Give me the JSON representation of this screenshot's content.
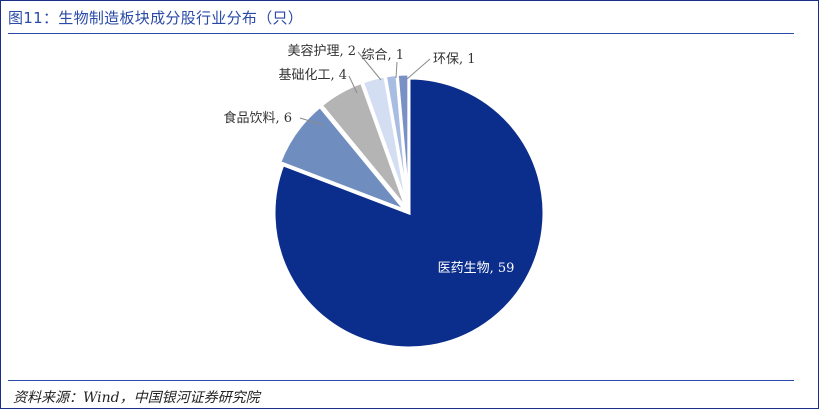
{
  "title": "图11：生物制造板块成分股行业分布（只）",
  "source": "资料来源：Wind，中国银河证券研究院",
  "chart_data": {
    "type": "pie",
    "title": "图11：生物制造板块成分股行业分布（只）",
    "slices": [
      {
        "label": "医药生物, 59",
        "name": "医药生物",
        "value": 59,
        "color": "#0b2d8c"
      },
      {
        "label": "食品饮料, 6",
        "name": "食品饮料",
        "value": 6,
        "color": "#6f8ebf"
      },
      {
        "label": "基础化工, 4",
        "name": "基础化工",
        "value": 4,
        "color": "#b4b4b4"
      },
      {
        "label": "美容护理, 2",
        "name": "美容护理",
        "value": 2,
        "color": "#d3def2"
      },
      {
        "label": "综合, 1",
        "name": "综合",
        "value": 1,
        "color": "#a9bde3"
      },
      {
        "label": "环保, 1",
        "name": "环保",
        "value": 1,
        "color": "#7890c4"
      }
    ]
  }
}
